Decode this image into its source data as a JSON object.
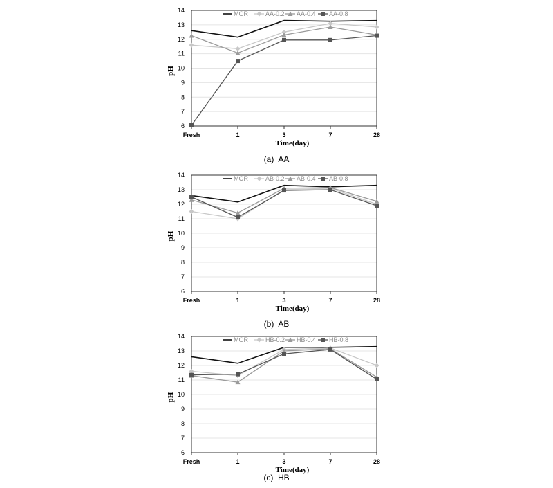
{
  "chart_data": [
    {
      "type": "line",
      "caption": "(a)  AA",
      "categories": [
        "Fresh",
        "1",
        "3",
        "7",
        "28"
      ],
      "xlabel": "Time(day)",
      "ylabel": "pH",
      "ylim": [
        6,
        14
      ],
      "yticks": [
        6,
        7,
        8,
        9,
        10,
        11,
        12,
        13,
        14
      ],
      "grid": true,
      "legend_position": "top-right",
      "series": [
        {
          "name": "MOR",
          "color": "#111111",
          "marker": "none",
          "values": [
            12.6,
            12.15,
            13.3,
            13.25,
            13.3
          ]
        },
        {
          "name": "AA-0.2",
          "color": "#c8c8c8",
          "marker": "diamond",
          "values": [
            11.6,
            11.35,
            12.5,
            13.1,
            12.85
          ]
        },
        {
          "name": "AA-0.4",
          "color": "#9a9a9a",
          "marker": "triangle",
          "values": [
            12.25,
            11.05,
            12.3,
            12.85,
            12.3
          ]
        },
        {
          "name": "AA-0.8",
          "color": "#555555",
          "marker": "square",
          "values": [
            6.05,
            10.5,
            11.95,
            11.95,
            12.25
          ]
        }
      ]
    },
    {
      "type": "line",
      "caption": "(b)  AB",
      "categories": [
        "Fresh",
        "1",
        "3",
        "7",
        "28"
      ],
      "xlabel": "Time(day)",
      "ylabel": "pH",
      "ylim": [
        6,
        14
      ],
      "yticks": [
        6,
        7,
        8,
        9,
        10,
        11,
        12,
        13,
        14
      ],
      "grid": true,
      "legend_position": "top-right",
      "series": [
        {
          "name": "MOR",
          "color": "#111111",
          "marker": "none",
          "values": [
            12.6,
            12.15,
            13.3,
            13.2,
            13.3
          ]
        },
        {
          "name": "AB-0.2",
          "color": "#c8c8c8",
          "marker": "diamond",
          "values": [
            11.5,
            11.0,
            13.0,
            13.1,
            12.0
          ]
        },
        {
          "name": "AB-0.4",
          "color": "#9a9a9a",
          "marker": "triangle",
          "values": [
            12.3,
            11.4,
            13.1,
            13.15,
            12.2
          ]
        },
        {
          "name": "AB-0.8",
          "color": "#555555",
          "marker": "square",
          "values": [
            12.5,
            11.1,
            12.95,
            13.0,
            11.9
          ]
        }
      ]
    },
    {
      "type": "line",
      "caption": "(c)  HB",
      "categories": [
        "Fresh",
        "1",
        "3",
        "7",
        "28"
      ],
      "xlabel": "Time(day)",
      "ylabel": "pH",
      "ylim": [
        6,
        14
      ],
      "yticks": [
        6,
        7,
        8,
        9,
        10,
        11,
        12,
        13,
        14
      ],
      "grid": true,
      "legend_position": "top-right",
      "series": [
        {
          "name": "MOR",
          "color": "#111111",
          "marker": "none",
          "values": [
            12.6,
            12.15,
            13.25,
            13.25,
            13.3
          ]
        },
        {
          "name": "HB-0.2",
          "color": "#c8c8c8",
          "marker": "diamond",
          "values": [
            11.6,
            11.3,
            13.1,
            13.2,
            12.0
          ]
        },
        {
          "name": "HB-0.4",
          "color": "#9a9a9a",
          "marker": "triangle",
          "values": [
            11.3,
            10.85,
            13.0,
            13.15,
            11.2
          ]
        },
        {
          "name": "HB-0.8",
          "color": "#555555",
          "marker": "square",
          "values": [
            11.35,
            11.4,
            12.8,
            13.1,
            11.05
          ]
        }
      ]
    }
  ]
}
